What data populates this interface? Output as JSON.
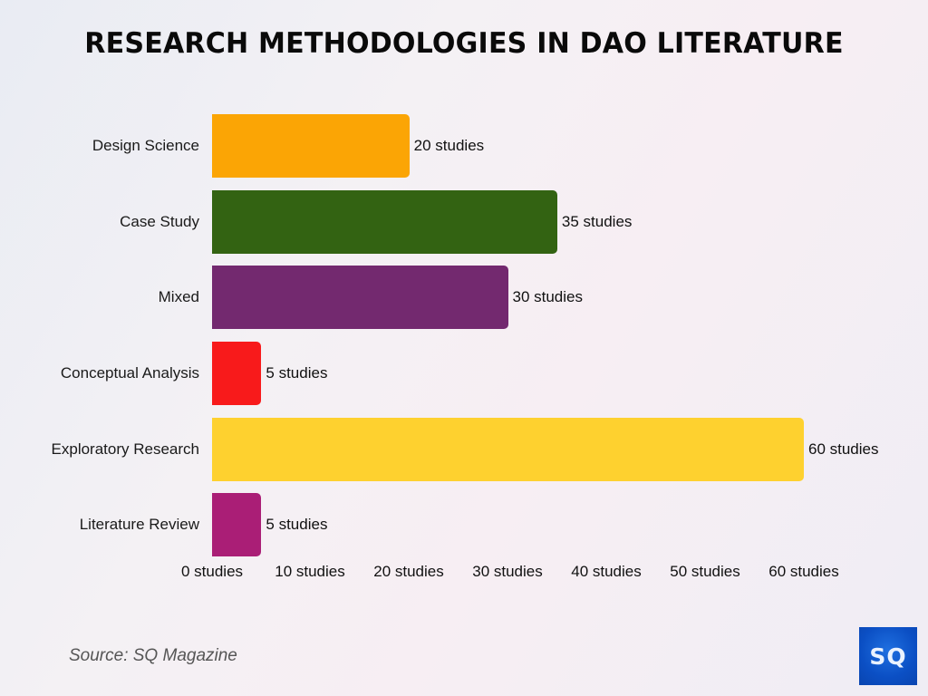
{
  "title": "RESEARCH METHODOLOGIES IN DAO LITERATURE",
  "source": "Source: SQ Magazine",
  "logo": {
    "text": "SQ",
    "color": "#0b4fc4"
  },
  "bars": [
    {
      "label": "Design Science",
      "value": 20,
      "value_label": "20 studies",
      "color": "#fba505"
    },
    {
      "label": "Case Study",
      "value": 35,
      "value_label": "35 studies",
      "color": "#336312"
    },
    {
      "label": "Mixed",
      "value": 30,
      "value_label": "30 studies",
      "color": "#73296f"
    },
    {
      "label": "Conceptual Analysis",
      "value": 5,
      "value_label": "5 studies",
      "color": "#f81a1b"
    },
    {
      "label": "Exploratory Research",
      "value": 60,
      "value_label": "60 studies",
      "color": "#fed12f"
    },
    {
      "label": "Literature Review",
      "value": 5,
      "value_label": "5 studies",
      "color": "#aa1e76"
    }
  ],
  "ticks": [
    "0 studies",
    "10 studies",
    "20 studies",
    "30 studies",
    "40 studies",
    "50 studies",
    "60 studies"
  ],
  "chart_data": {
    "type": "bar",
    "orientation": "horizontal",
    "title": "RESEARCH METHODOLOGIES IN DAO LITERATURE",
    "categories": [
      "Design Science",
      "Case Study",
      "Mixed",
      "Conceptual Analysis",
      "Exploratory Research",
      "Literature Review"
    ],
    "values": [
      20,
      35,
      30,
      5,
      60,
      5
    ],
    "data_labels": [
      "20 studies",
      "35 studies",
      "30 studies",
      "5 studies",
      "60 studies",
      "5 studies"
    ],
    "colors": [
      "#fba505",
      "#336312",
      "#73296f",
      "#f81a1b",
      "#fed12f",
      "#aa1e76"
    ],
    "xlabel": "",
    "ylabel": "",
    "xlim": [
      0,
      60
    ],
    "x_ticks": [
      "0 studies",
      "10 studies",
      "20 studies",
      "30 studies",
      "40 studies",
      "50 studies",
      "60 studies"
    ],
    "grid": false,
    "legend": null,
    "source": "Source: SQ Magazine"
  }
}
